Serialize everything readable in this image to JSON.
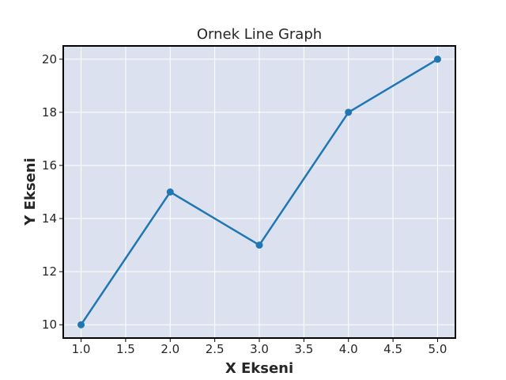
{
  "chart_data": {
    "type": "line",
    "title": "Ornek Line Graph",
    "xlabel": "X Ekseni",
    "ylabel": "Y Ekseni",
    "x": [
      1,
      2,
      3,
      4,
      5
    ],
    "series": [
      {
        "values": [
          10,
          15,
          13,
          18,
          20
        ],
        "color": "#1f77b4",
        "marker": "circle"
      }
    ],
    "xlim": [
      0.8,
      5.2
    ],
    "ylim": [
      9.5,
      20.5
    ],
    "xticks": [
      "1.0",
      "1.5",
      "2.0",
      "2.5",
      "3.0",
      "3.5",
      "4.0",
      "4.5",
      "5.0"
    ],
    "yticks": [
      "10",
      "12",
      "14",
      "16",
      "18",
      "20"
    ],
    "grid": true,
    "plot_background": "#dce1ef",
    "grid_color": "#ffffff"
  }
}
